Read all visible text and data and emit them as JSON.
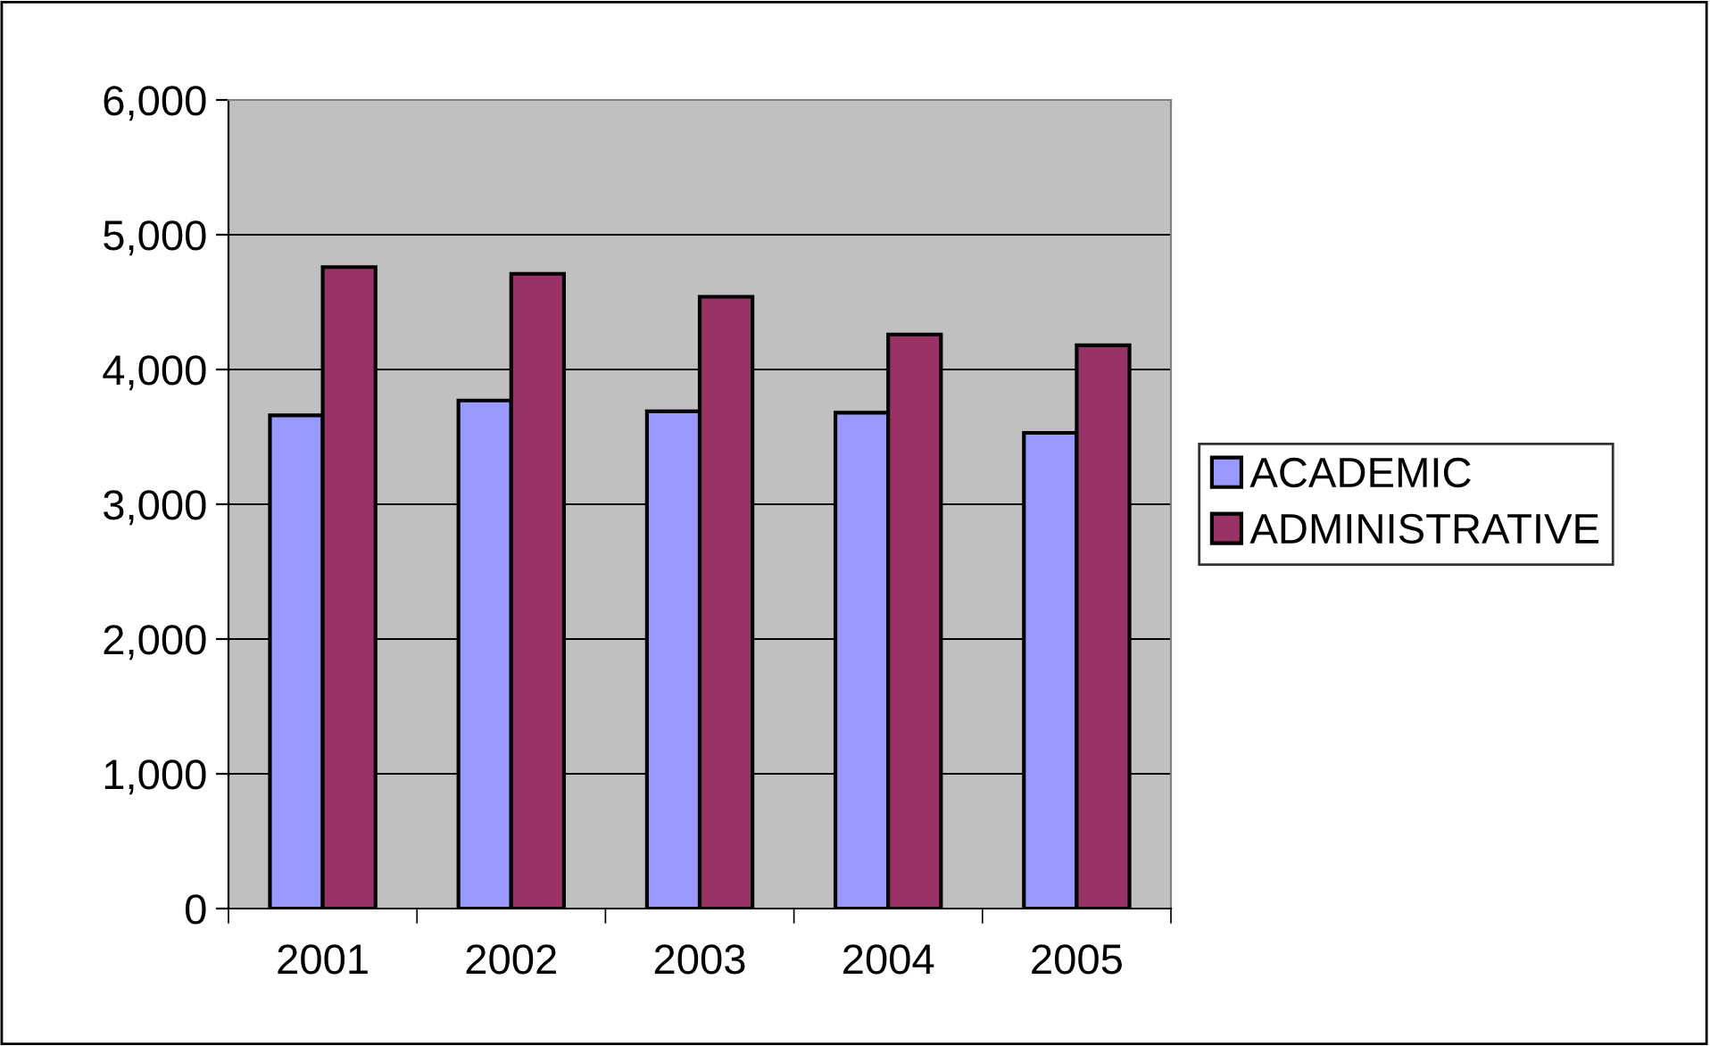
{
  "chart_data": {
    "type": "bar",
    "categories": [
      "2001",
      "2002",
      "2003",
      "2004",
      "2005"
    ],
    "series": [
      {
        "name": "ACADEMIC",
        "color": "#9999ff",
        "values": [
          3660,
          3770,
          3690,
          3680,
          3530
        ]
      },
      {
        "name": "ADMINISTRATIVE",
        "color": "#993366",
        "values": [
          4760,
          4710,
          4540,
          4260,
          4180
        ]
      }
    ],
    "ylim": [
      0,
      6000
    ],
    "yticks": [
      {
        "value": 0,
        "label": "0"
      },
      {
        "value": 1000,
        "label": "1,000"
      },
      {
        "value": 2000,
        "label": "2,000"
      },
      {
        "value": 3000,
        "label": "3,000"
      },
      {
        "value": 4000,
        "label": "4,000"
      },
      {
        "value": 5000,
        "label": "5,000"
      },
      {
        "value": 6000,
        "label": "6,000"
      }
    ],
    "grid": "y",
    "legend": "right"
  }
}
